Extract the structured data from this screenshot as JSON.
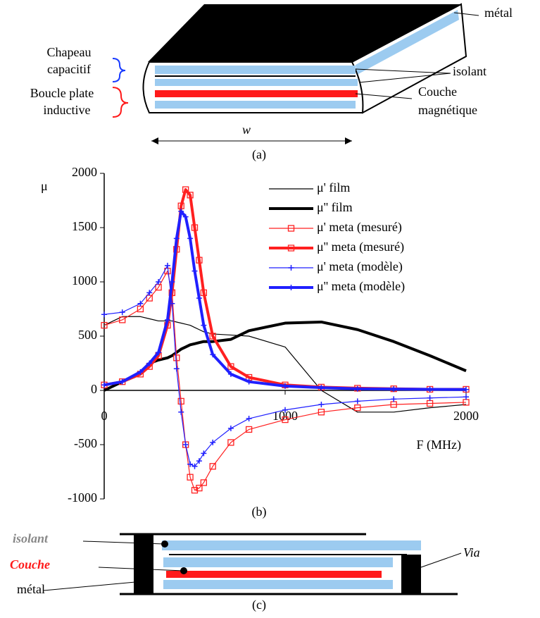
{
  "diagram_a": {
    "labels": [
      "métal",
      "Chapeau",
      "capacitif",
      "Boucle plate",
      "inductive",
      "isolant",
      "Couche",
      "magnétique",
      "w"
    ],
    "caption": "(a)"
  },
  "chart_data": {
    "type": "line",
    "y_label": "μ",
    "x_label": "F (MHz)",
    "caption": "(b)",
    "x": [
      0,
      100,
      200,
      250,
      300,
      350,
      375,
      400,
      425,
      450,
      475,
      500,
      525,
      550,
      600,
      700,
      800,
      1000,
      1200,
      1400,
      1600,
      1800,
      2000
    ],
    "xlim": [
      0,
      2000
    ],
    "xticks": [
      0,
      1000,
      2000
    ],
    "ylim": [
      -1000,
      2000
    ],
    "yticks": [
      -1000,
      -500,
      0,
      500,
      1000,
      1500,
      2000
    ],
    "series": [
      {
        "name": "μ' film",
        "color": "#000000",
        "line_width": 1.2,
        "marker": "none",
        "values": [
          600,
          680,
          680,
          660,
          640,
          640,
          640,
          630,
          620,
          610,
          600,
          580,
          560,
          540,
          520,
          510,
          500,
          400,
          0,
          -200,
          -200,
          -160,
          -130
        ]
      },
      {
        "name": "μ'' film",
        "color": "#000000",
        "line_width": 4,
        "marker": "none",
        "values": [
          0,
          80,
          150,
          250,
          280,
          300,
          320,
          350,
          380,
          400,
          420,
          430,
          440,
          450,
          450,
          470,
          550,
          620,
          630,
          560,
          450,
          320,
          180
        ]
      },
      {
        "name": "μ' meta (mesuré)",
        "color": "#ff2020",
        "line_width": 1.2,
        "marker": "square",
        "values": [
          600,
          650,
          750,
          850,
          950,
          1100,
          900,
          300,
          -100,
          -500,
          -800,
          -920,
          -900,
          -850,
          -700,
          -480,
          -360,
          -270,
          -200,
          -160,
          -130,
          -120,
          -110
        ]
      },
      {
        "name": "μ'' meta (mesuré)",
        "color": "#ff2020",
        "line_width": 4,
        "marker": "square",
        "values": [
          50,
          80,
          150,
          220,
          320,
          600,
          900,
          1300,
          1700,
          1850,
          1800,
          1500,
          1200,
          900,
          500,
          220,
          120,
          50,
          30,
          20,
          15,
          10,
          10
        ]
      },
      {
        "name": "μ' meta (modèle)",
        "color": "#2020ff",
        "line_width": 1.2,
        "marker": "plus",
        "values": [
          700,
          720,
          800,
          900,
          1000,
          1150,
          800,
          200,
          -200,
          -500,
          -680,
          -700,
          -650,
          -580,
          -480,
          -350,
          -260,
          -180,
          -130,
          -100,
          -80,
          -70,
          -60
        ]
      },
      {
        "name": "μ'' meta (modèle)",
        "color": "#2020ff",
        "line_width": 4,
        "marker": "plus",
        "values": [
          50,
          80,
          170,
          250,
          350,
          650,
          1000,
          1400,
          1650,
          1600,
          1400,
          1100,
          850,
          600,
          330,
          150,
          80,
          40,
          25,
          15,
          12,
          10,
          8
        ]
      }
    ]
  },
  "diagram_c": {
    "labels": [
      "isolant",
      "Couche",
      "métal",
      "Via"
    ],
    "caption": "(c)"
  }
}
